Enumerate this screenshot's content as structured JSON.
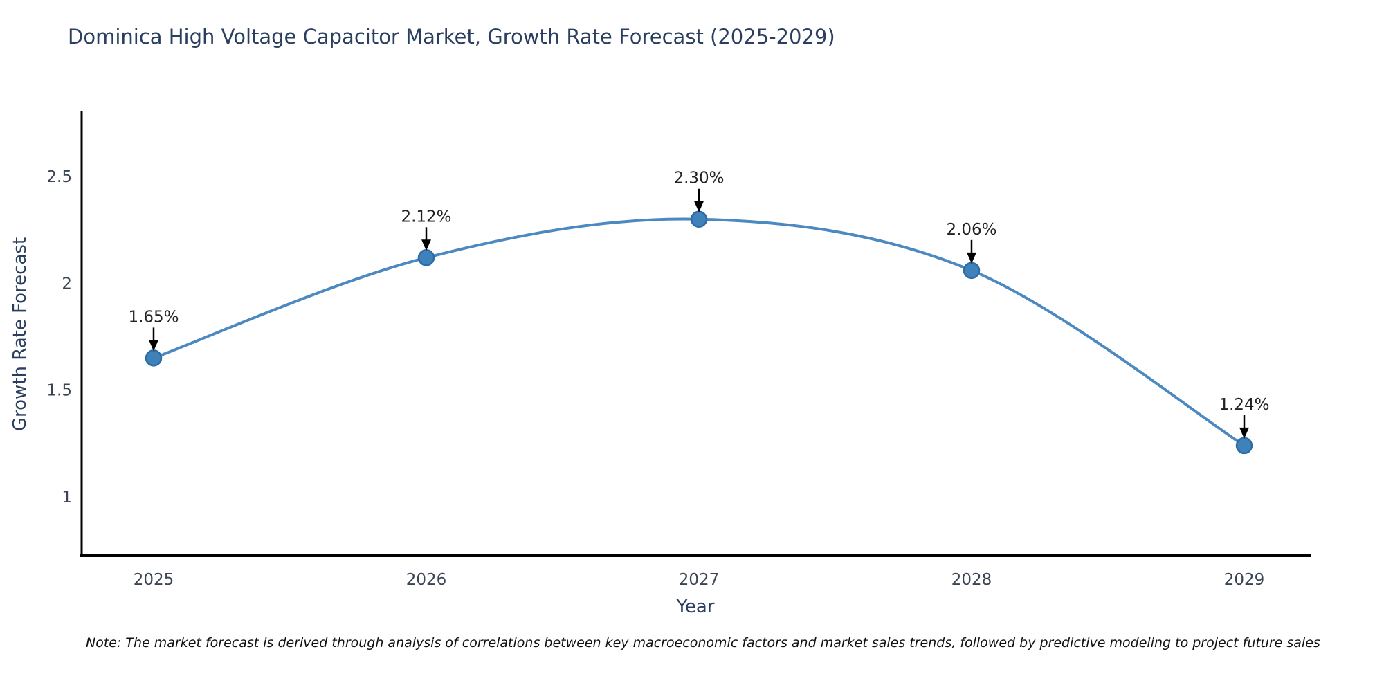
{
  "header": {
    "title": "Dominica High Voltage Capacitor Market, Growth Rate Forecast (2025-2029)"
  },
  "footer": {
    "note": "Note: The market forecast is derived through analysis of correlations between key macroeconomic factors and market sales trends, followed by predictive modeling to project future sales"
  },
  "chart_data": {
    "type": "line",
    "title": "Dominica High Voltage Capacitor Market, Growth Rate Forecast (2025-2029)",
    "xlabel": "Year",
    "ylabel": "Growth Rate Forecast",
    "x": [
      2025,
      2026,
      2027,
      2028,
      2029
    ],
    "y": [
      1.65,
      2.12,
      2.3,
      2.06,
      1.24
    ],
    "point_labels": [
      "1.65%",
      "2.12%",
      "2.30%",
      "2.06%",
      "1.24%"
    ],
    "xtick_labels": [
      "2025",
      "2026",
      "2027",
      "2028",
      "2029"
    ],
    "yticks": [
      1,
      1.5,
      2,
      2.5
    ],
    "ytick_labels": [
      "1",
      "1.5",
      "2",
      "2.5"
    ],
    "ylim": [
      0.73,
      2.81
    ],
    "xlim": [
      2024.73,
      2029.24
    ],
    "line_shape": "spline",
    "grid": false,
    "legend_position": "none",
    "colors": {
      "line": "#4b89c0",
      "marker_fill": "#3f81b9",
      "marker_edge": "#2e6ca5",
      "annotation_text": "#222222",
      "annotation_arrow": "#000000",
      "axis_line": "#000000",
      "title_text": "#2a3f5f",
      "tick_text": "#3a4454"
    }
  }
}
